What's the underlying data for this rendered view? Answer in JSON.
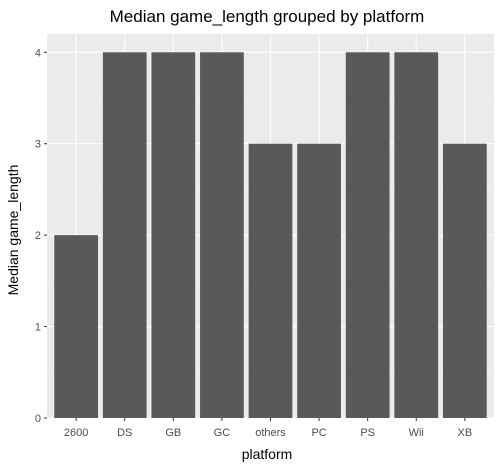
{
  "chart_data": {
    "type": "bar",
    "title": "Median game_length grouped by platform",
    "xlabel": "platform",
    "ylabel": "Median game_length",
    "categories": [
      "2600",
      "DS",
      "GB",
      "GC",
      "others",
      "PC",
      "PS",
      "Wii",
      "XB"
    ],
    "values": [
      2,
      4,
      4,
      4,
      3,
      3,
      4,
      4,
      3
    ],
    "ylim": [
      0,
      4.2
    ],
    "yticks": [
      0,
      1,
      2,
      3,
      4
    ],
    "grid": true,
    "colors": {
      "bar": "#595959",
      "panel": "#ebebeb",
      "grid_major": "#ffffff",
      "text": "#000000",
      "tick_text": "#4d4d4d",
      "tick_mark": "#333333"
    }
  }
}
